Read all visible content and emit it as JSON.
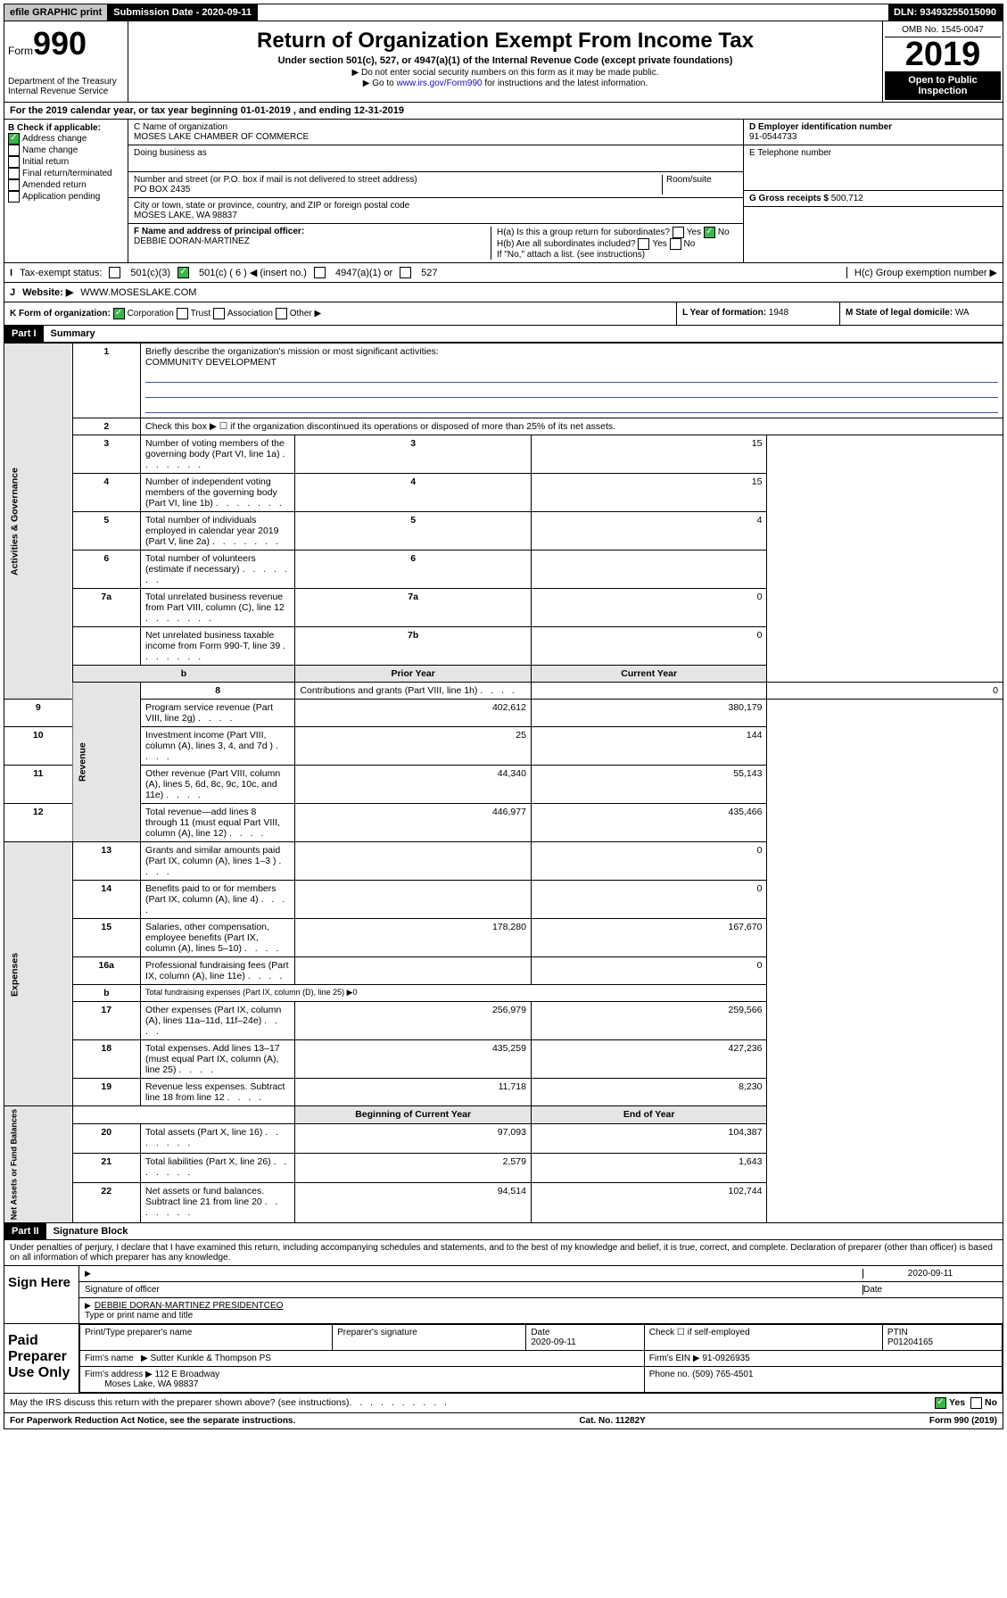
{
  "topbar": {
    "efile": "efile GRAPHIC print",
    "sub_lbl": "Submission Date - 2020-09-11",
    "dln": "DLN: 93493255015090"
  },
  "header": {
    "form_prefix": "Form",
    "form_num": "990",
    "dept": "Department of the Treasury\nInternal Revenue Service",
    "title": "Return of Organization Exempt From Income Tax",
    "under": "Under section 501(c), 527, or 4947(a)(1) of the Internal Revenue Code (except private foundations)",
    "n1": "▶ Do not enter social security numbers on this form as it may be made public.",
    "n2_pre": "▶ Go to ",
    "n2_link": "www.irs.gov/Form990",
    "n2_post": " for instructions and the latest information.",
    "omb": "OMB No. 1545-0047",
    "year": "2019",
    "open": "Open to Public Inspection"
  },
  "A": "For the 2019 calendar year, or tax year beginning 01-01-2019    , and ending 12-31-2019",
  "B": {
    "title": "B Check if applicable:",
    "items": [
      "Address change",
      "Name change",
      "Initial return",
      "Final return/terminated",
      "Amended return",
      "Application pending"
    ]
  },
  "C": {
    "name_lbl": "C Name of organization",
    "name": "MOSES LAKE CHAMBER OF COMMERCE",
    "dba_lbl": "Doing business as",
    "addr_lbl": "Number and street (or P.O. box if mail is not delivered to street address)",
    "room_lbl": "Room/suite",
    "addr": "PO BOX 2435",
    "city_lbl": "City or town, state or province, country, and ZIP or foreign postal code",
    "city": "MOSES LAKE, WA  98837",
    "F_lbl": "F  Name and address of principal officer:",
    "F_name": "DEBBIE DORAN-MARTINEZ"
  },
  "D": {
    "lbl": "D Employer identification number",
    "val": "91-0544733"
  },
  "E": {
    "lbl": "E Telephone number",
    "val": ""
  },
  "G": {
    "lbl": "G Gross receipts $",
    "val": "500,712"
  },
  "H": {
    "a": "H(a)  Is this a group return for subordinates?",
    "b": "H(b)  Are all subordinates included?",
    "note": "If \"No,\" attach a list. (see instructions)",
    "c": "H(c)  Group exemption number ▶",
    "yes": "Yes",
    "no": "No"
  },
  "I": {
    "lbl": "Tax-exempt status:",
    "o1": "501(c)(3)",
    "o2": "501(c) ( 6 ) ◀ (insert no.)",
    "o3": "4947(a)(1) or",
    "o4": "527"
  },
  "J": {
    "lbl": "Website: ▶",
    "val": "WWW.MOSESLAKE.COM"
  },
  "K": {
    "lbl": "K Form of organization:",
    "o1": "Corporation",
    "o2": "Trust",
    "o3": "Association",
    "o4": "Other ▶"
  },
  "L": {
    "lbl": "L Year of formation:",
    "val": "1948"
  },
  "M": {
    "lbl": "M State of legal domicile:",
    "val": "WA"
  },
  "part1": {
    "hdr": "Part I",
    "title": "Summary"
  },
  "s1": {
    "l1": "Briefly describe the organization's mission or most significant activities:",
    "mission": "COMMUNITY DEVELOPMENT",
    "l2": "Check this box ▶ ☐  if the organization discontinued its operations or disposed of more than 25% of its net assets.",
    "rows": [
      {
        "n": "3",
        "t": "Number of voting members of the governing body (Part VI, line 1a)",
        "c": "3",
        "v": "15"
      },
      {
        "n": "4",
        "t": "Number of independent voting members of the governing body (Part VI, line 1b)",
        "c": "4",
        "v": "15"
      },
      {
        "n": "5",
        "t": "Total number of individuals employed in calendar year 2019 (Part V, line 2a)",
        "c": "5",
        "v": "4"
      },
      {
        "n": "6",
        "t": "Total number of volunteers (estimate if necessary)",
        "c": "6",
        "v": ""
      },
      {
        "n": "7a",
        "t": "Total unrelated business revenue from Part VIII, column (C), line 12",
        "c": "7a",
        "v": "0"
      },
      {
        "n": "",
        "t": "Net unrelated business taxable income from Form 990-T, line 39",
        "c": "7b",
        "v": "0"
      }
    ],
    "py": "Prior Year",
    "cy": "Current Year",
    "rev": [
      {
        "n": "8",
        "t": "Contributions and grants (Part VIII, line 1h)",
        "p": "",
        "c": "0"
      },
      {
        "n": "9",
        "t": "Program service revenue (Part VIII, line 2g)",
        "p": "402,612",
        "c": "380,179"
      },
      {
        "n": "10",
        "t": "Investment income (Part VIII, column (A), lines 3, 4, and 7d )",
        "p": "25",
        "c": "144"
      },
      {
        "n": "11",
        "t": "Other revenue (Part VIII, column (A), lines 5, 6d, 8c, 9c, 10c, and 11e)",
        "p": "44,340",
        "c": "55,143"
      },
      {
        "n": "12",
        "t": "Total revenue—add lines 8 through 11 (must equal Part VIII, column (A), line 12)",
        "p": "446,977",
        "c": "435,466"
      }
    ],
    "exp": [
      {
        "n": "13",
        "t": "Grants and similar amounts paid (Part IX, column (A), lines 1–3 )",
        "p": "",
        "c": "0"
      },
      {
        "n": "14",
        "t": "Benefits paid to or for members (Part IX, column (A), line 4)",
        "p": "",
        "c": "0"
      },
      {
        "n": "15",
        "t": "Salaries, other compensation, employee benefits (Part IX, column (A), lines 5–10)",
        "p": "178,280",
        "c": "167,670"
      },
      {
        "n": "16a",
        "t": "Professional fundraising fees (Part IX, column (A), line 11e)",
        "p": "",
        "c": "0"
      },
      {
        "n": "b",
        "t": "Total fundraising expenses (Part IX, column (D), line 25) ▶0",
        "p": "—",
        "c": "—"
      },
      {
        "n": "17",
        "t": "Other expenses (Part IX, column (A), lines 11a–11d, 11f–24e)",
        "p": "256,979",
        "c": "259,566"
      },
      {
        "n": "18",
        "t": "Total expenses. Add lines 13–17 (must equal Part IX, column (A), line 25)",
        "p": "435,259",
        "c": "427,236"
      },
      {
        "n": "19",
        "t": "Revenue less expenses. Subtract line 18 from line 12",
        "p": "11,718",
        "c": "8,230"
      }
    ],
    "by": "Beginning of Current Year",
    "ey": "End of Year",
    "net": [
      {
        "n": "20",
        "t": "Total assets (Part X, line 16)",
        "p": "97,093",
        "c": "104,387"
      },
      {
        "n": "21",
        "t": "Total liabilities (Part X, line 26)",
        "p": "2,579",
        "c": "1,643"
      },
      {
        "n": "22",
        "t": "Net assets or fund balances. Subtract line 21 from line 20",
        "p": "94,514",
        "c": "102,744"
      }
    ],
    "tabs": [
      "Activities & Governance",
      "Revenue",
      "Expenses",
      "Net Assets or Fund Balances"
    ]
  },
  "part2": {
    "hdr": "Part II",
    "title": "Signature Block",
    "perjury": "Under penalties of perjury, I declare that I have examined this return, including accompanying schedules and statements, and to the best of my knowledge and belief, it is true, correct, and complete. Declaration of preparer (other than officer) is based on all information of which preparer has any knowledge."
  },
  "sign": {
    "here": "Sign Here",
    "sig_lbl": "Signature of officer",
    "date_lbl": "Date",
    "date": "2020-09-11",
    "name": "DEBBIE DORAN-MARTINEZ  PRESIDENTCEO",
    "name_lbl": "Type or print name and title"
  },
  "paid": {
    "title": "Paid Preparer Use Only",
    "h1": "Print/Type preparer's name",
    "h2": "Preparer's signature",
    "h3": "Date",
    "h4": "Check ☐ if self-employed",
    "h5": "PTIN",
    "date": "2020-09-11",
    "ptin": "P01204165",
    "firm_lbl": "Firm's name",
    "firm": "▶ Sutter Kunkle & Thompson PS",
    "ein_lbl": "Firm's EIN ▶",
    "ein": "91-0926935",
    "addr_lbl": "Firm's address ▶",
    "addr1": "112 E Broadway",
    "addr2": "Moses Lake, WA  98837",
    "ph_lbl": "Phone no.",
    "ph": "(509) 765-4501"
  },
  "discuss": "May the IRS discuss this return with the preparer shown above? (see instructions)",
  "footer": {
    "l": "For Paperwork Reduction Act Notice, see the separate instructions.",
    "m": "Cat. No. 11282Y",
    "r": "Form 990 (2019)"
  }
}
